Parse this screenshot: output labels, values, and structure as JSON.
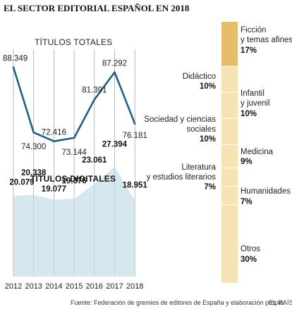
{
  "title": "EL SECTOR EDITORIAL ESPAÑOL EN 2018",
  "source": "Fuente: Federación de gremios de editores de España y elaboración propia.",
  "brand": "EL PAÍS",
  "colors": {
    "line": "#1f5f86",
    "area": "#d6e7ef",
    "bar": "#f6e3b4",
    "bar_highlight": "#e6bd6a",
    "bar_divider": "#ffffff",
    "grid": "#9a9a9a"
  },
  "chart_data": [
    {
      "type": "line",
      "title": "TÍTULOS TOTALES",
      "x": [
        "2012",
        "2013",
        "2014",
        "2015",
        "2016",
        "2017",
        "2018"
      ],
      "values": [
        88349,
        74300,
        72416,
        73144,
        81391,
        87292,
        76181
      ],
      "labels": [
        "88.349",
        "74.300",
        "72.416",
        "73.144",
        "81.391",
        "87.292",
        "76.181"
      ],
      "xlabel": "",
      "ylabel": "",
      "ylim": [
        58000,
        92000
      ],
      "grid": "vertical"
    },
    {
      "type": "area",
      "title": "TÍTULOS DIGITALES",
      "x": [
        "2012",
        "2013",
        "2014",
        "2015",
        "2016",
        "2017",
        "2018"
      ],
      "values": [
        20079,
        20338,
        19077,
        19376,
        23061,
        27394,
        18951
      ],
      "labels": [
        "20.079",
        "20.338",
        "19.077",
        "19.376",
        "23.061",
        "27.394",
        "18.951"
      ],
      "xlabel": "",
      "ylabel": "",
      "ylim": [
        0,
        56000
      ],
      "grid": "vertical"
    },
    {
      "type": "bar",
      "title": "",
      "stacked": true,
      "orientation": "vertical",
      "categories": [
        "Ficción y temas afines",
        "Didáctico",
        "Infantil y juvenil",
        "Sociedad y ciencias sociales",
        "Medicina",
        "Literatura y estudios literarios",
        "Humanidades",
        "Otros"
      ],
      "values": [
        17,
        10,
        10,
        10,
        9,
        7,
        7,
        30
      ],
      "labels": [
        "17%",
        "10%",
        "10%",
        "10%",
        "9%",
        "7%",
        "7%",
        "30%"
      ],
      "highlight_index": 0
    }
  ],
  "segment_labels": [
    {
      "lines": [
        "Ficción",
        "y temas afines"
      ],
      "pct": "17%",
      "side": "right"
    },
    {
      "lines": [
        "Didáctico"
      ],
      "pct": "10%",
      "side": "left"
    },
    {
      "lines": [
        "Infantil",
        "y juvenil"
      ],
      "pct": "10%",
      "side": "right"
    },
    {
      "lines": [
        "Sociedad y ciencias",
        "sociales"
      ],
      "pct": "10%",
      "side": "left"
    },
    {
      "lines": [
        "Medicina"
      ],
      "pct": "9%",
      "side": "right"
    },
    {
      "lines": [
        "Literatura",
        "y estudios literarios"
      ],
      "pct": "7%",
      "side": "left"
    },
    {
      "lines": [
        "Humanidades"
      ],
      "pct": "7%",
      "side": "right"
    },
    {
      "lines": [
        "Otros"
      ],
      "pct": "30%",
      "side": "right"
    }
  ]
}
